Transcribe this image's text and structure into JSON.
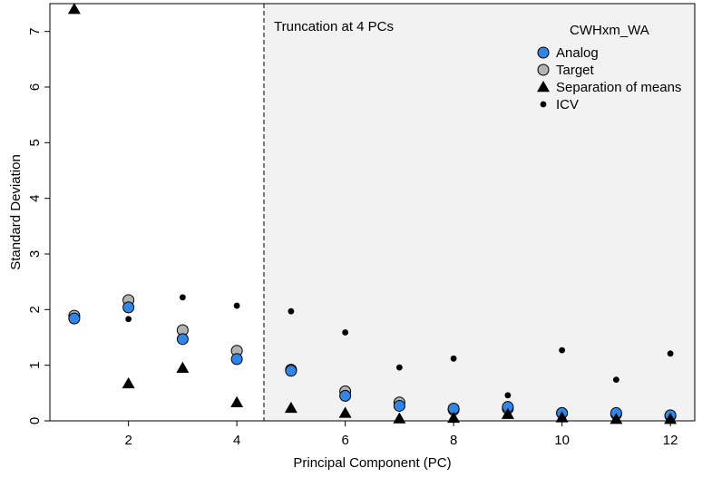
{
  "chart_data": {
    "type": "scatter",
    "title": "",
    "xlabel": "Principal Component (PC)",
    "ylabel": "Standard Deviation",
    "xlim": [
      0.55,
      12.45
    ],
    "ylim": [
      0,
      7.5
    ],
    "x_ticks": [
      2,
      4,
      6,
      8,
      10,
      12
    ],
    "y_ticks": [
      0,
      1,
      2,
      3,
      4,
      5,
      6,
      7
    ],
    "grid": false,
    "truncation": {
      "x": 4.5,
      "label": "Truncation at 4 PCs",
      "shaded_region_color": "#f2f2f2",
      "line_style": "dashed"
    },
    "legend": {
      "title": "CWHxm_WA",
      "placement": "top-right"
    },
    "x": [
      1,
      2,
      3,
      4,
      5,
      6,
      7,
      8,
      9,
      10,
      11,
      12
    ],
    "series": [
      {
        "name": "ICV",
        "marker": "small-circle",
        "color": "#000000",
        "values": [
          1.85,
          1.83,
          2.22,
          2.07,
          1.97,
          1.59,
          0.96,
          1.12,
          0.46,
          1.27,
          0.74,
          1.21
        ]
      },
      {
        "name": "Target",
        "marker": "circle",
        "color": "#b3b3b3",
        "values": [
          1.89,
          2.17,
          1.63,
          1.26,
          0.92,
          0.53,
          0.33,
          0.2,
          0.22,
          0.14,
          0.12,
          0.09
        ]
      },
      {
        "name": "Analog",
        "marker": "circle",
        "color": "#2f86e8",
        "values": [
          1.84,
          2.04,
          1.47,
          1.11,
          0.9,
          0.45,
          0.27,
          0.22,
          0.25,
          0.14,
          0.14,
          0.1
        ]
      },
      {
        "name": "Separation of means",
        "marker": "triangle",
        "color": "#000000",
        "values": [
          7.4,
          0.67,
          0.95,
          0.33,
          0.23,
          0.14,
          0.04,
          0.05,
          0.12,
          0.06,
          0.03,
          0.03
        ]
      }
    ],
    "legend_order": [
      "Analog",
      "Target",
      "Separation of means",
      "ICV"
    ]
  }
}
